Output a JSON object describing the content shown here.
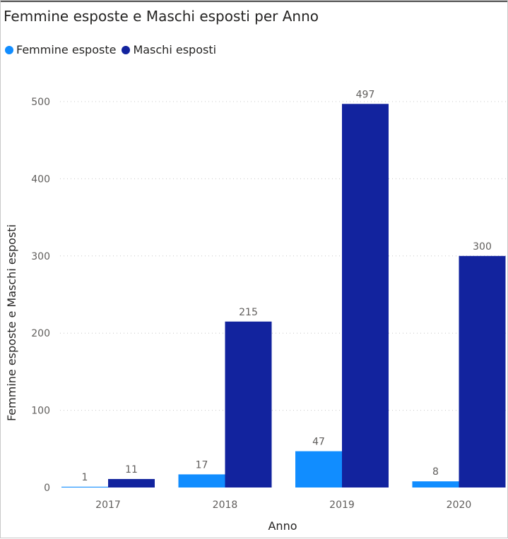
{
  "chart_data": {
    "type": "bar",
    "title": "Femmine esposte e Maschi esposti per Anno",
    "xlabel": "Anno",
    "ylabel": "Femmine esposte e Maschi esposti",
    "categories": [
      "2017",
      "2018",
      "2019",
      "2020"
    ],
    "series": [
      {
        "name": "Femmine esposte",
        "values": [
          1,
          17,
          47,
          8
        ],
        "color": "#118dff"
      },
      {
        "name": "Maschi esposti",
        "values": [
          11,
          215,
          497,
          300
        ],
        "color": "#12239e"
      }
    ],
    "yticks": [
      0,
      100,
      200,
      300,
      400,
      500
    ],
    "ylim": [
      0,
      500
    ],
    "grid": true,
    "legend_position": "top-left"
  }
}
